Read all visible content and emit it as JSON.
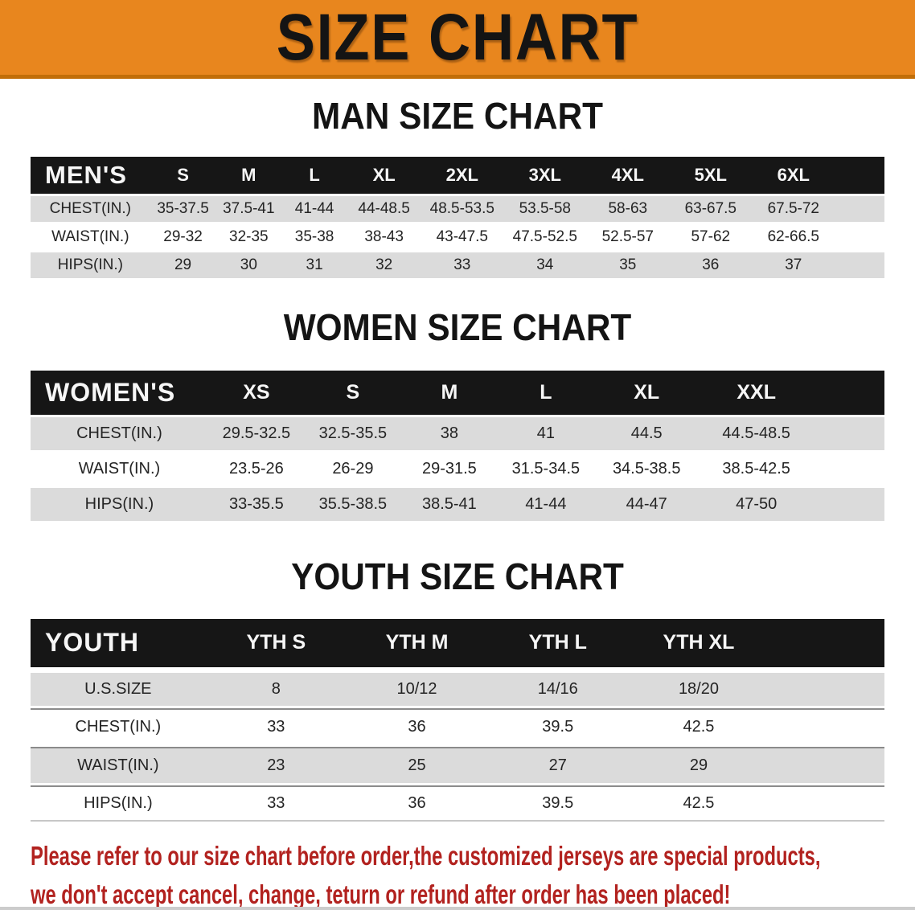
{
  "banner": {
    "title": "SIZE CHART",
    "bg_color": "#E8861E",
    "border_color": "#C26E08"
  },
  "sections": [
    {
      "heading": "MAN SIZE CHART",
      "table": {
        "label": "MEN'S",
        "columns": [
          "S",
          "M",
          "L",
          "XL",
          "2XL",
          "3XL",
          "4XL",
          "5XL",
          "6XL"
        ],
        "rows": [
          {
            "label": "CHEST(IN.)",
            "values": [
              "35-37.5",
              "37.5-41",
              "41-44",
              "44-48.5",
              "48.5-53.5",
              "53.5-58",
              "58-63",
              "63-67.5",
              "67.5-72"
            ]
          },
          {
            "label": "WAIST(IN.)",
            "values": [
              "29-32",
              "32-35",
              "35-38",
              "38-43",
              "43-47.5",
              "47.5-52.5",
              "52.5-57",
              "57-62",
              "62-66.5"
            ]
          },
          {
            "label": "HIPS(IN.)",
            "values": [
              "29",
              "30",
              "31",
              "32",
              "33",
              "34",
              "35",
              "36",
              "37"
            ]
          }
        ]
      }
    },
    {
      "heading": "WOMEN SIZE CHART",
      "table": {
        "label": "WOMEN'S",
        "columns": [
          "XS",
          "S",
          "M",
          "L",
          "XL",
          "XXL"
        ],
        "rows": [
          {
            "label": "CHEST(IN.)",
            "values": [
              "29.5-32.5",
              "32.5-35.5",
              "38",
              "41",
              "44.5",
              "44.5-48.5"
            ]
          },
          {
            "label": "WAIST(IN.)",
            "values": [
              "23.5-26",
              "26-29",
              "29-31.5",
              "31.5-34.5",
              "34.5-38.5",
              "38.5-42.5"
            ]
          },
          {
            "label": "HIPS(IN.)",
            "values": [
              "33-35.5",
              "35.5-38.5",
              "38.5-41",
              "41-44",
              "44-47",
              "47-50"
            ]
          }
        ]
      }
    },
    {
      "heading": "YOUTH SIZE CHART",
      "table": {
        "label": "YOUTH",
        "columns": [
          "YTH S",
          "YTH M",
          "YTH L",
          "YTH XL"
        ],
        "rows": [
          {
            "label": "U.S.SIZE",
            "values": [
              "8",
              "10/12",
              "14/16",
              "18/20"
            ]
          },
          {
            "label": "CHEST(IN.)",
            "values": [
              "33",
              "36",
              "39.5",
              "42.5"
            ]
          },
          {
            "label": "WAIST(IN.)",
            "values": [
              "23",
              "25",
              "27",
              "29"
            ]
          },
          {
            "label": "HIPS(IN.)",
            "values": [
              "33",
              "36",
              "39.5",
              "42.5"
            ]
          }
        ]
      }
    }
  ],
  "disclaimer": {
    "line1": "Please refer to our size chart before order,the customized jerseys are special products,",
    "line2": "we don't accept cancel, change, teturn or refund after order has been placed!",
    "color": "#B2221F"
  },
  "colors": {
    "header_row_bg": "#161616",
    "header_row_text": "#F6F6F6",
    "stripe_gray": "#DBDBDB",
    "stripe_white": "#FFFFFF"
  }
}
